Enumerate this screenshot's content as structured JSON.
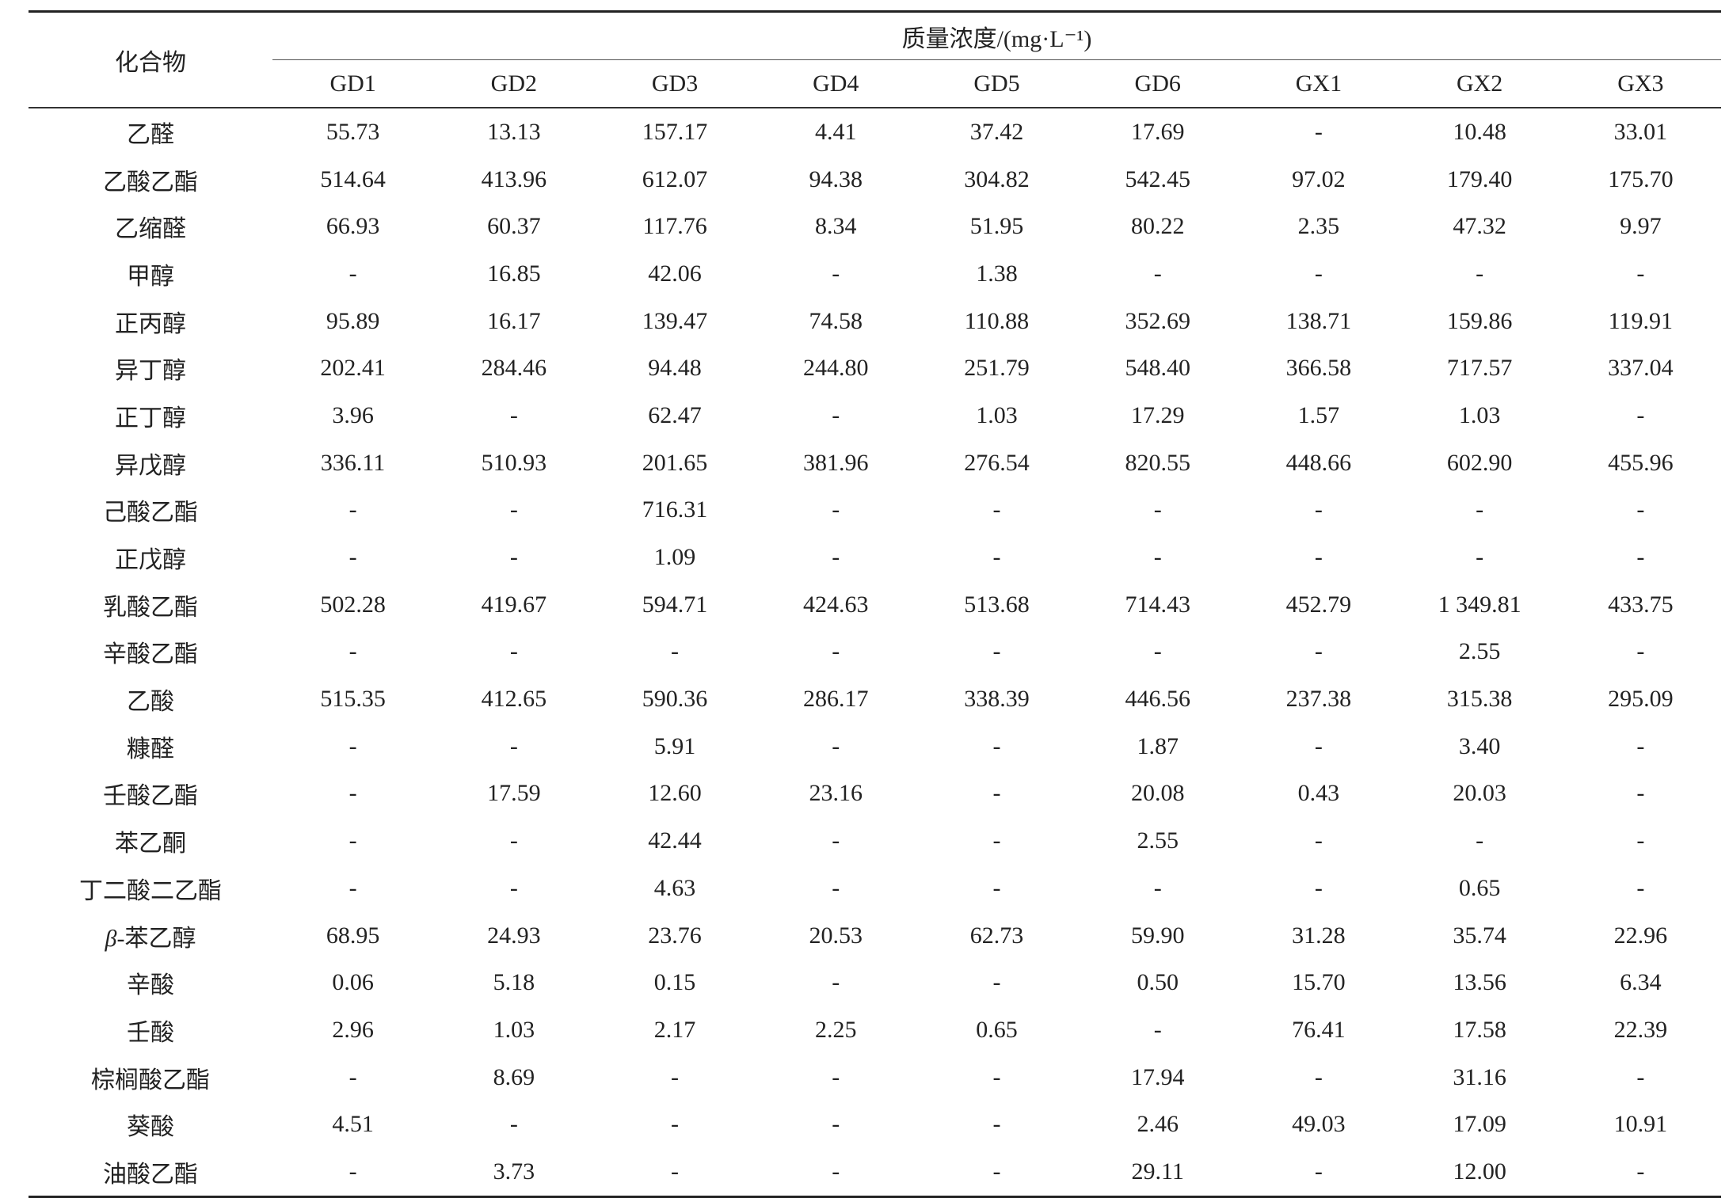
{
  "table": {
    "compound_header": "化合物",
    "group_header": "质量浓度/(mg·L⁻¹)",
    "columns": [
      "GD1",
      "GD2",
      "GD3",
      "GD4",
      "GD5",
      "GD6",
      "GX1",
      "GX2",
      "GX3"
    ],
    "rows": [
      {
        "name": "乙醛",
        "values": [
          "55.73",
          "13.13",
          "157.17",
          "4.41",
          "37.42",
          "17.69",
          "-",
          "10.48",
          "33.01"
        ]
      },
      {
        "name": "乙酸乙酯",
        "values": [
          "514.64",
          "413.96",
          "612.07",
          "94.38",
          "304.82",
          "542.45",
          "97.02",
          "179.40",
          "175.70"
        ]
      },
      {
        "name": "乙缩醛",
        "values": [
          "66.93",
          "60.37",
          "117.76",
          "8.34",
          "51.95",
          "80.22",
          "2.35",
          "47.32",
          "9.97"
        ]
      },
      {
        "name": "甲醇",
        "values": [
          "-",
          "16.85",
          "42.06",
          "-",
          "1.38",
          "-",
          "-",
          "-",
          "-"
        ]
      },
      {
        "name": "正丙醇",
        "values": [
          "95.89",
          "16.17",
          "139.47",
          "74.58",
          "110.88",
          "352.69",
          "138.71",
          "159.86",
          "119.91"
        ]
      },
      {
        "name": "异丁醇",
        "values": [
          "202.41",
          "284.46",
          "94.48",
          "244.80",
          "251.79",
          "548.40",
          "366.58",
          "717.57",
          "337.04"
        ]
      },
      {
        "name": "正丁醇",
        "values": [
          "3.96",
          "-",
          "62.47",
          "-",
          "1.03",
          "17.29",
          "1.57",
          "1.03",
          "-"
        ]
      },
      {
        "name": "异戊醇",
        "values": [
          "336.11",
          "510.93",
          "201.65",
          "381.96",
          "276.54",
          "820.55",
          "448.66",
          "602.90",
          "455.96"
        ]
      },
      {
        "name": "己酸乙酯",
        "values": [
          "-",
          "-",
          "716.31",
          "-",
          "-",
          "-",
          "-",
          "-",
          "-"
        ]
      },
      {
        "name": "正戊醇",
        "values": [
          "-",
          "-",
          "1.09",
          "-",
          "-",
          "-",
          "-",
          "-",
          "-"
        ]
      },
      {
        "name": "乳酸乙酯",
        "values": [
          "502.28",
          "419.67",
          "594.71",
          "424.63",
          "513.68",
          "714.43",
          "452.79",
          "1 349.81",
          "433.75"
        ]
      },
      {
        "name": "辛酸乙酯",
        "values": [
          "-",
          "-",
          "-",
          "-",
          "-",
          "-",
          "-",
          "2.55",
          "-"
        ]
      },
      {
        "name": "乙酸",
        "values": [
          "515.35",
          "412.65",
          "590.36",
          "286.17",
          "338.39",
          "446.56",
          "237.38",
          "315.38",
          "295.09"
        ]
      },
      {
        "name": "糠醛",
        "values": [
          "-",
          "-",
          "5.91",
          "-",
          "-",
          "1.87",
          "-",
          "3.40",
          "-"
        ]
      },
      {
        "name": "壬酸乙酯",
        "values": [
          "-",
          "17.59",
          "12.60",
          "23.16",
          "-",
          "20.08",
          "0.43",
          "20.03",
          "-"
        ]
      },
      {
        "name": "苯乙酮",
        "values": [
          "-",
          "-",
          "42.44",
          "-",
          "-",
          "2.55",
          "-",
          "-",
          "-"
        ]
      },
      {
        "name": "丁二酸二乙酯",
        "values": [
          "-",
          "-",
          "4.63",
          "-",
          "-",
          "-",
          "-",
          "0.65",
          "-"
        ]
      },
      {
        "name": "β-苯乙醇",
        "values": [
          "68.95",
          "24.93",
          "23.76",
          "20.53",
          "62.73",
          "59.90",
          "31.28",
          "35.74",
          "22.96"
        ]
      },
      {
        "name": "辛酸",
        "values": [
          "0.06",
          "5.18",
          "0.15",
          "-",
          "-",
          "0.50",
          "15.70",
          "13.56",
          "6.34"
        ]
      },
      {
        "name": "壬酸",
        "values": [
          "2.96",
          "1.03",
          "2.17",
          "2.25",
          "0.65",
          "-",
          "76.41",
          "17.58",
          "22.39"
        ]
      },
      {
        "name": "棕榈酸乙酯",
        "values": [
          "-",
          "8.69",
          "-",
          "-",
          "-",
          "17.94",
          "-",
          "31.16",
          "-"
        ]
      },
      {
        "name": "葵酸",
        "values": [
          "4.51",
          "-",
          "-",
          "-",
          "-",
          "2.46",
          "49.03",
          "17.09",
          "10.91"
        ]
      },
      {
        "name": "油酸乙酯",
        "values": [
          "-",
          "3.73",
          "-",
          "-",
          "-",
          "29.11",
          "-",
          "12.00",
          "-"
        ]
      }
    ]
  }
}
